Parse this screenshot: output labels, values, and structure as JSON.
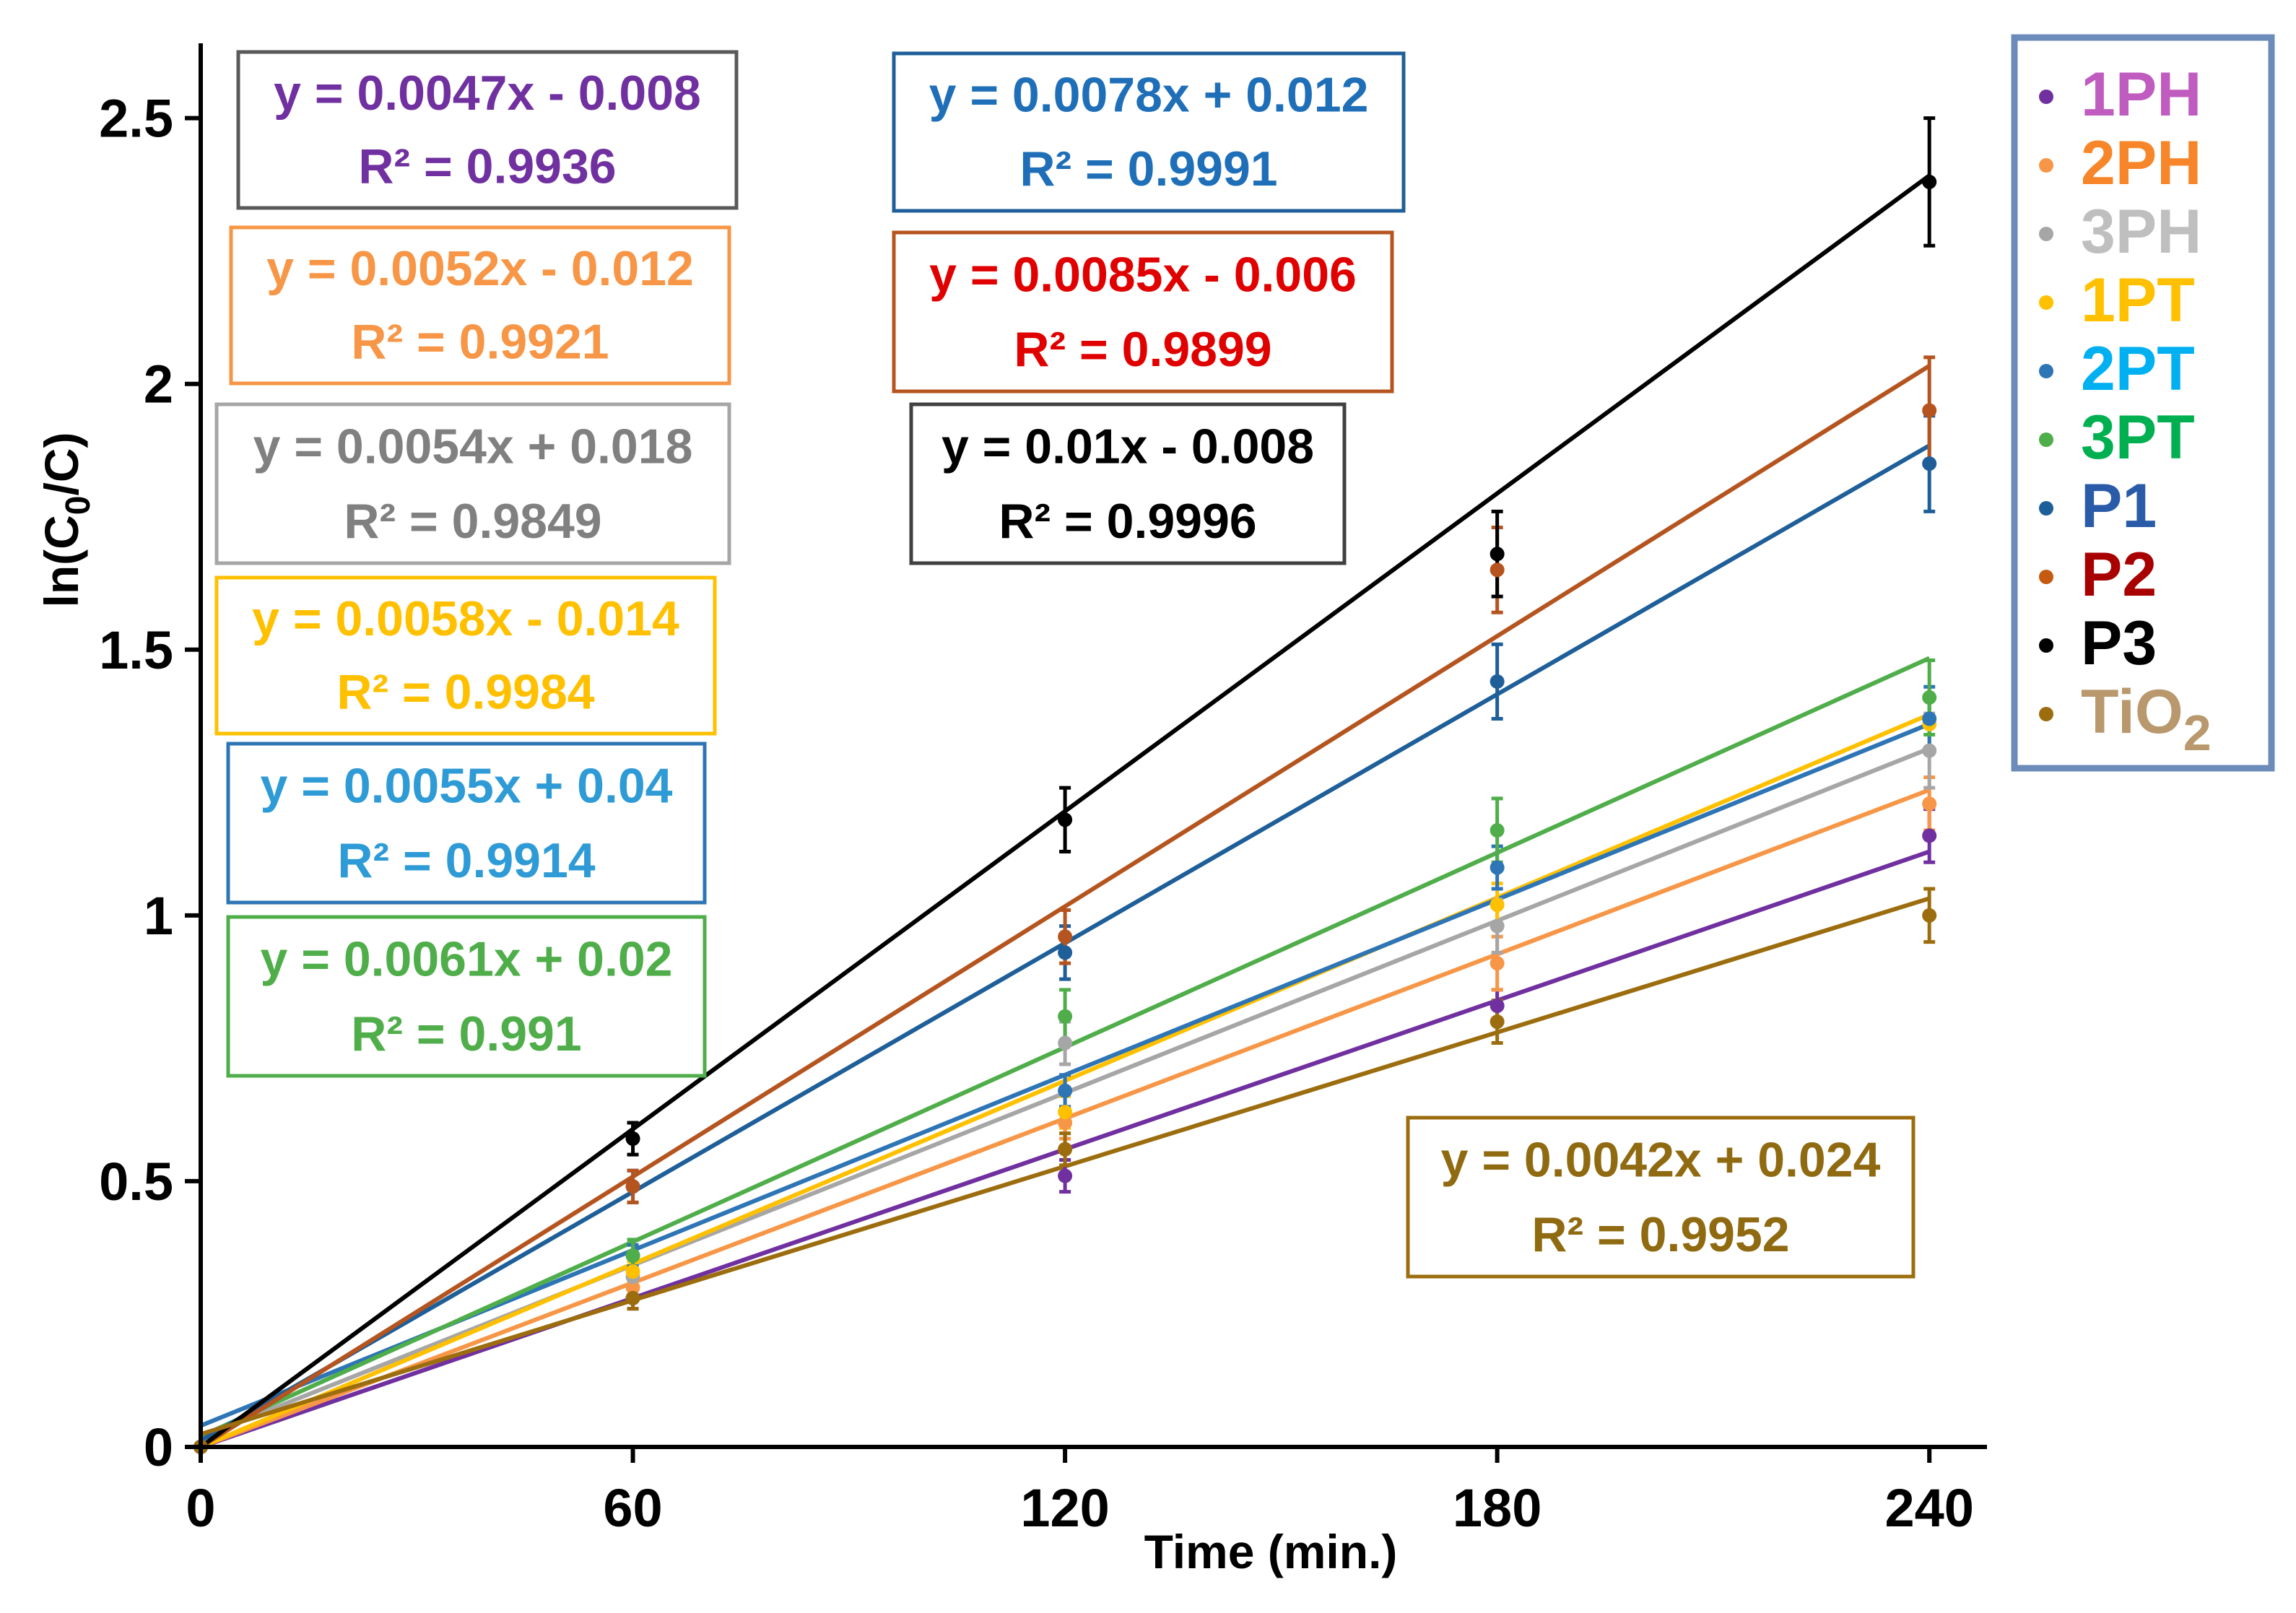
{
  "chart_data": {
    "type": "line",
    "xlabel": "Time (min.)",
    "ylabel_prefix": "ln(C",
    "ylabel_sub": "0",
    "ylabel_suffix": "/C)",
    "xlim": [
      0,
      248
    ],
    "ylim": [
      0,
      2.6
    ],
    "x": [
      0,
      60,
      120,
      180,
      240
    ],
    "x_ticks": [
      0,
      60,
      120,
      180,
      240
    ],
    "x_tick_labels": [
      "0",
      "60",
      "120",
      "180",
      "240"
    ],
    "y_ticks": [
      0,
      0.5,
      1,
      1.5,
      2,
      2.5
    ],
    "y_tick_labels": [
      "0",
      "0.5",
      "1",
      "1.5",
      "2",
      "2.5"
    ],
    "series": [
      {
        "name": "1PH",
        "color": "#7030a0",
        "legend_color": "#7030a0",
        "legend_text_color": "#c05cc0",
        "values": [
          0,
          0.28,
          0.51,
          0.83,
          1.15
        ],
        "errors": [
          0,
          0.02,
          0.03,
          0.03,
          0.05
        ],
        "fit": {
          "slope": 0.0047,
          "intercept": -0.008
        },
        "equation": "y = 0.0047x - 0.008",
        "r2": "R² = 0.9936",
        "eq_color": "#7030a0",
        "box_color": "#595959"
      },
      {
        "name": "2PH",
        "color": "#f79646",
        "legend_color": "#f79646",
        "legend_text_color": "#f7862a",
        "values": [
          0,
          0.3,
          0.61,
          0.91,
          1.21
        ],
        "errors": [
          0,
          0.02,
          0.03,
          0.05,
          0.05
        ],
        "fit": {
          "slope": 0.0052,
          "intercept": -0.012
        },
        "equation": "y = 0.0052x - 0.012",
        "r2": "R² = 0.9921",
        "eq_color": "#f79646",
        "box_color": "#f79646"
      },
      {
        "name": "3PH",
        "color": "#a6a6a6",
        "legend_color": "#a6a6a6",
        "legend_text_color": "#bfbfbf",
        "values": [
          0,
          0.32,
          0.76,
          0.98,
          1.31
        ],
        "errors": [
          0,
          0.02,
          0.04,
          0.05,
          0.07
        ],
        "fit": {
          "slope": 0.0054,
          "intercept": 0.018
        },
        "equation": "y = 0.0054x + 0.018",
        "r2": "R² = 0.9849",
        "eq_color": "#808080",
        "box_color": "#a6a6a6"
      },
      {
        "name": "1PT",
        "color": "#ffc000",
        "legend_color": "#ffc000",
        "legend_text_color": "#ffc000",
        "values": [
          0,
          0.33,
          0.63,
          1.02,
          1.36
        ],
        "errors": [
          0,
          0.02,
          0.03,
          0.04,
          0.05
        ],
        "fit": {
          "slope": 0.0058,
          "intercept": -0.014
        },
        "equation": "y = 0.0058x - 0.014",
        "r2": "R² = 0.9984",
        "eq_color": "#ffc000",
        "box_color": "#ffc000"
      },
      {
        "name": "2PT",
        "color": "#2e75b6",
        "legend_color": "#2e75b6",
        "legend_text_color": "#00b0f0",
        "values": [
          0,
          0.36,
          0.67,
          1.09,
          1.37
        ],
        "errors": [
          0,
          0.02,
          0.03,
          0.04,
          0.06
        ],
        "fit": {
          "slope": 0.0055,
          "intercept": 0.04
        },
        "equation": "y = 0.0055x + 0.04",
        "r2": "R² = 0.9914",
        "eq_color": "#2e9bd6",
        "box_color": "#2e75b6"
      },
      {
        "name": "3PT",
        "color": "#4fae4a",
        "legend_color": "#4fae4a",
        "legend_text_color": "#00b050",
        "values": [
          0,
          0.36,
          0.81,
          1.16,
          1.41
        ],
        "errors": [
          0,
          0.03,
          0.05,
          0.06,
          0.07
        ],
        "fit": {
          "slope": 0.0061,
          "intercept": 0.02
        },
        "equation": "y = 0.0061x + 0.02",
        "r2": "R² = 0.991",
        "eq_color": "#4fae4a",
        "box_color": "#4fae4a"
      },
      {
        "name": "P1",
        "color": "#1f5f99",
        "legend_color": "#1f5f99",
        "legend_text_color": "#2a5ba8",
        "values": [
          0,
          0.49,
          0.93,
          1.44,
          1.85
        ],
        "errors": [
          0,
          0.03,
          0.05,
          0.07,
          0.09
        ],
        "fit": {
          "slope": 0.0078,
          "intercept": 0.012
        },
        "equation": "y = 0.0078x + 0.012",
        "r2": "R² = 0.9991",
        "eq_color": "#1f6fb8",
        "box_color": "#1f5f99"
      },
      {
        "name": "P2",
        "color": "#b5541e",
        "legend_color": "#c55a11",
        "legend_text_color": "#a80000",
        "values": [
          0,
          0.49,
          0.96,
          1.65,
          1.95
        ],
        "errors": [
          0,
          0.03,
          0.05,
          0.08,
          0.1
        ],
        "fit": {
          "slope": 0.0085,
          "intercept": -0.006
        },
        "equation": "y = 0.0085x - 0.006",
        "r2": "R² = 0.9899",
        "eq_color": "#e00000",
        "box_color": "#b5541e"
      },
      {
        "name": "P3",
        "color": "#000000",
        "legend_color": "#000000",
        "legend_text_color": "#000000",
        "values": [
          0,
          0.58,
          1.18,
          1.68,
          2.38
        ],
        "errors": [
          0,
          0.03,
          0.06,
          0.08,
          0.12
        ],
        "fit": {
          "slope": 0.01,
          "intercept": -0.008
        },
        "equation": "y = 0.01x - 0.008",
        "r2": "R² = 0.9996",
        "eq_color": "#000000",
        "box_color": "#404040"
      },
      {
        "name": "TiO",
        "name_sub": "2",
        "color": "#9c6d0e",
        "legend_color": "#9c6d0e",
        "legend_text_color": "#b8986c",
        "values": [
          0,
          0.28,
          0.56,
          0.8,
          1.0
        ],
        "errors": [
          0,
          0.02,
          0.03,
          0.04,
          0.05
        ],
        "fit": {
          "slope": 0.0042,
          "intercept": 0.024
        },
        "equation": "y = 0.0042x + 0.024",
        "r2": "R² = 0.9952",
        "eq_color": "#8f6a10",
        "box_color": "#9c6d0e"
      }
    ]
  }
}
